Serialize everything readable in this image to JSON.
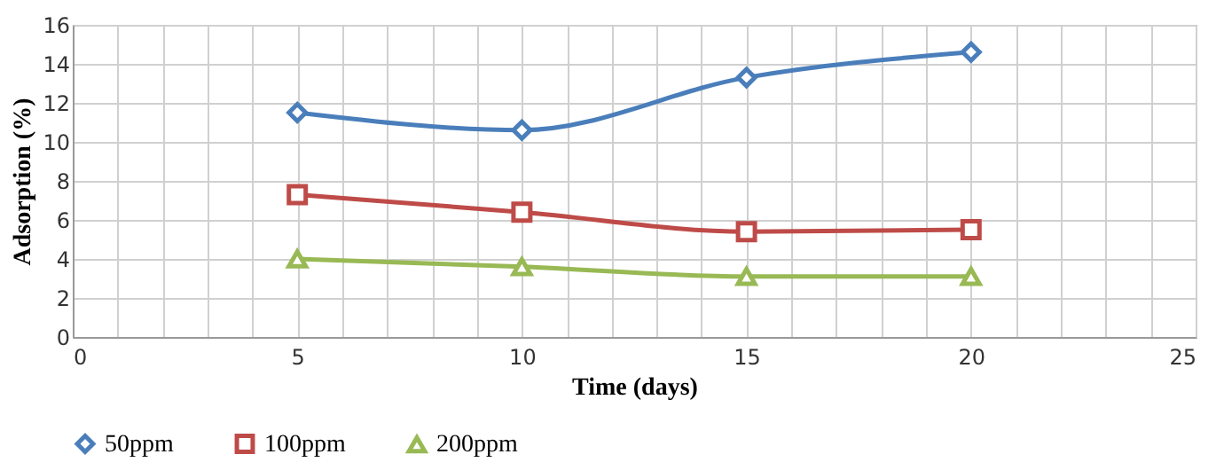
{
  "chart_data": {
    "type": "line",
    "xlabel": "Time (days)",
    "ylabel": "Adsorption (%)",
    "x": [
      5,
      10,
      15,
      20
    ],
    "xlim": [
      0,
      25
    ],
    "xticks": [
      0,
      {
        "value": 1,
        "label": null
      },
      {
        "value": 2,
        "label": null
      },
      {
        "value": 3,
        "label": null
      },
      {
        "value": 4,
        "label": null
      },
      5,
      {
        "value": 6,
        "label": null
      },
      {
        "value": 7,
        "label": null
      },
      {
        "value": 8,
        "label": null
      },
      {
        "value": 9,
        "label": null
      },
      10,
      {
        "value": 11,
        "label": null
      },
      {
        "value": 12,
        "label": null
      },
      {
        "value": 13,
        "label": null
      },
      {
        "value": 14,
        "label": null
      },
      15,
      {
        "value": 16,
        "label": null
      },
      {
        "value": 17,
        "label": null
      },
      {
        "value": 18,
        "label": null
      },
      {
        "value": 19,
        "label": null
      },
      20,
      {
        "value": 21,
        "label": null
      },
      {
        "value": 22,
        "label": null
      },
      {
        "value": 23,
        "label": null
      },
      {
        "value": 24,
        "label": null
      },
      25
    ],
    "ylim": [
      0,
      16
    ],
    "yticks": [
      0,
      2,
      4,
      6,
      8,
      10,
      12,
      14,
      16
    ],
    "grid": true,
    "legend": "bottom",
    "line_style": "solid",
    "series": [
      {
        "name": "50ppm",
        "color": "#4a7ebb",
        "marker": "diamond",
        "values": [
          11.5,
          10.6,
          13.3,
          14.6
        ]
      },
      {
        "name": "100ppm",
        "color": "#be4b48",
        "marker": "square",
        "values": [
          7.3,
          6.4,
          5.4,
          5.5
        ]
      },
      {
        "name": "200ppm",
        "color": "#98b954",
        "marker": "triangle",
        "values": [
          4.0,
          3.6,
          3.1,
          3.1
        ]
      }
    ]
  }
}
